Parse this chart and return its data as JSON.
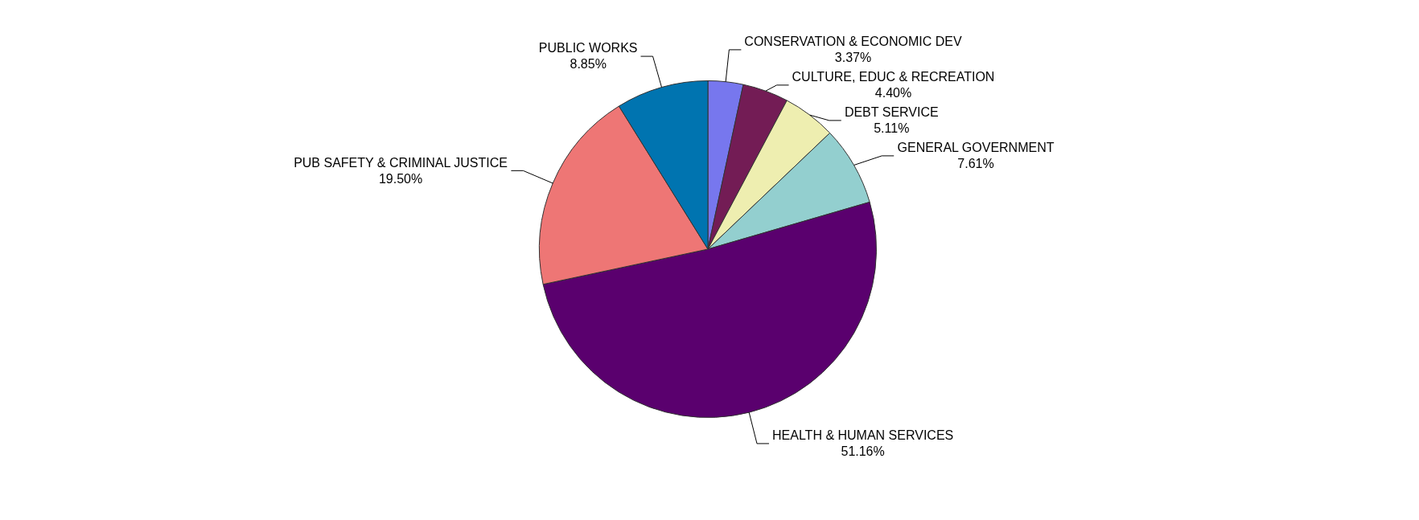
{
  "chart_data": {
    "type": "pie",
    "categories": [
      "CONSERVATION & ECONOMIC DEV",
      "CULTURE, EDUC & RECREATION",
      "DEBT SERVICE",
      "GENERAL GOVERNMENT",
      "HEALTH & HUMAN SERVICES",
      "PUB SAFETY & CRIMINAL JUSTICE",
      "PUBLIC WORKS"
    ],
    "values": [
      3.37,
      4.4,
      5.11,
      7.61,
      51.16,
      19.5,
      8.85
    ],
    "colors": [
      "#7777ee",
      "#731c55",
      "#eeeeb0",
      "#93cfcf",
      "#5a006e",
      "#ee7675",
      "#0074b0"
    ],
    "value_labels": [
      "3.37%",
      "4.40%",
      "5.11%",
      "7.61%",
      "51.16%",
      "19.50%",
      "8.85%"
    ]
  }
}
